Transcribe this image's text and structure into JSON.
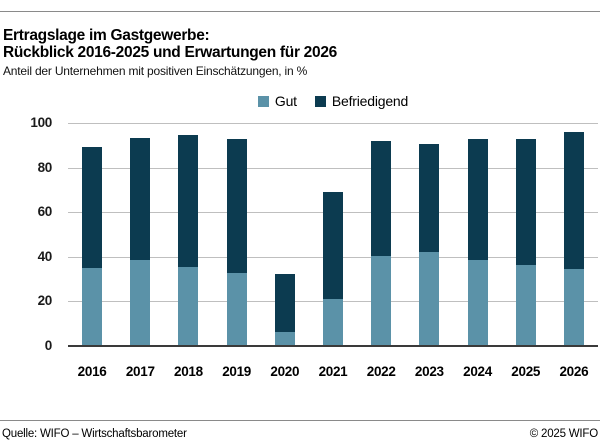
{
  "header": {
    "title_line1": "Ertragslage im Gastgewerbe:",
    "title_line2": "Rückblick 2016-2025 und Erwartungen für 2026",
    "subtitle": "Anteil der Unternehmen mit positiven Einschätzungen, in %"
  },
  "chart_data": {
    "type": "bar",
    "stacked": true,
    "title": "Ertragslage im Gastgewerbe: Rückblick 2016-2025 und Erwartungen für 2026",
    "subtitle": "Anteil der Unternehmen mit positiven Einschätzungen, in %",
    "categories": [
      "2016",
      "2017",
      "2018",
      "2019",
      "2020",
      "2021",
      "2022",
      "2023",
      "2024",
      "2025",
      "2026"
    ],
    "series": [
      {
        "name": "Gut",
        "color": "#5B92A8",
        "values": [
          34.5,
          38,
          35,
          32.5,
          6,
          20.5,
          40,
          41.5,
          38,
          36,
          34
        ]
      },
      {
        "name": "Befriedigend",
        "color": "#0C3B50",
        "values": [
          54.5,
          55,
          59,
          60,
          26,
          48,
          51.5,
          48.5,
          54.5,
          56.5,
          61.5
        ]
      }
    ],
    "totals": [
      89,
      93,
      94,
      92.5,
      32,
      68.5,
      91.5,
      90,
      92.5,
      92.5,
      95.5
    ],
    "xlabel": "",
    "ylabel": "",
    "ylim": [
      0,
      100
    ],
    "yticks": [
      0,
      20,
      40,
      60,
      80,
      100
    ],
    "grid": true,
    "gridline_color": "#bfbfbf",
    "axis_color": "#3a3a3a",
    "legend_position": "top-center"
  },
  "footer": {
    "source": "Quelle: WIFO – Wirtschaftsbarometer",
    "copyright": "© 2025 WIFO"
  }
}
